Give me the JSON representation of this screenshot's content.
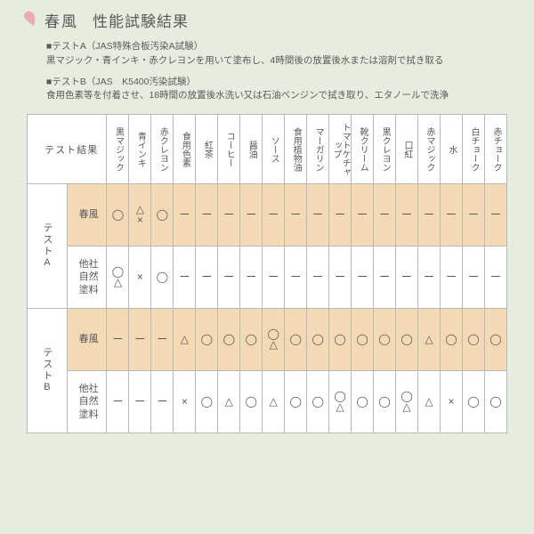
{
  "colors": {
    "page_bg": "#e7ece0",
    "highlight_bg": "#f4d9b5",
    "border": "#b9b9b3",
    "text": "#5a5a5a",
    "petal": "#eaabb6"
  },
  "title": {
    "main": "春風",
    "sub": "性能試験結果"
  },
  "notes": {
    "a_head": "■テストA（JAS特殊合板汚染A試験）",
    "a_body": "黒マジック・青インキ・赤クレヨンを用いて塗布し、4時間後の放置後水または溶剤で拭き取る",
    "b_head": "■テストB（JAS　K5400汚染試験）",
    "b_body": "食用色素等を付着させ、18時間の放置後水洗い又は石油ベンジンで拭き取り、エタノールで洗浄"
  },
  "results_label": "テスト結果",
  "columns": [
    "黒マジック",
    "青インキ",
    "赤クレヨン",
    "食用色素",
    "紅茶",
    "コーヒー",
    "醤油",
    "ソース",
    "食用植物油",
    "マーガリン",
    "トマトケチャップ",
    "靴クリーム",
    "黒クレヨン",
    "口紅",
    "赤マジック",
    "水",
    "白チョーク",
    "赤チョーク"
  ],
  "groups": {
    "a": {
      "label": "テストA",
      "rows": [
        {
          "name": "春風",
          "highlight": true,
          "cells": [
            "◯",
            "△<br>×",
            "◯",
            "ー",
            "ー",
            "ー",
            "ー",
            "ー",
            "ー",
            "ー",
            "ー",
            "ー",
            "ー",
            "ー",
            "ー",
            "ー",
            "ー",
            "ー"
          ]
        },
        {
          "name": "他社<br>自然塗料",
          "highlight": false,
          "cells": [
            "◯<br>△",
            "×",
            "◯",
            "ー",
            "ー",
            "ー",
            "ー",
            "ー",
            "ー",
            "ー",
            "ー",
            "ー",
            "ー",
            "ー",
            "ー",
            "ー",
            "ー",
            "ー"
          ]
        }
      ]
    },
    "b": {
      "label": "テストB",
      "rows": [
        {
          "name": "春風",
          "highlight": true,
          "cells": [
            "ー",
            "ー",
            "ー",
            "△",
            "◯",
            "◯",
            "◯",
            "◯<br>△",
            "◯",
            "◯",
            "◯",
            "◯",
            "◯",
            "◯",
            "△",
            "◯",
            "◯",
            "◯"
          ]
        },
        {
          "name": "他社<br>自然塗料",
          "highlight": false,
          "cells": [
            "ー",
            "ー",
            "ー",
            "×",
            "◯",
            "△",
            "◯",
            "△",
            "◯",
            "◯",
            "◯<br>△",
            "◯",
            "◯",
            "◯<br>△",
            "△",
            "×",
            "◯",
            "◯"
          ]
        }
      ]
    }
  }
}
